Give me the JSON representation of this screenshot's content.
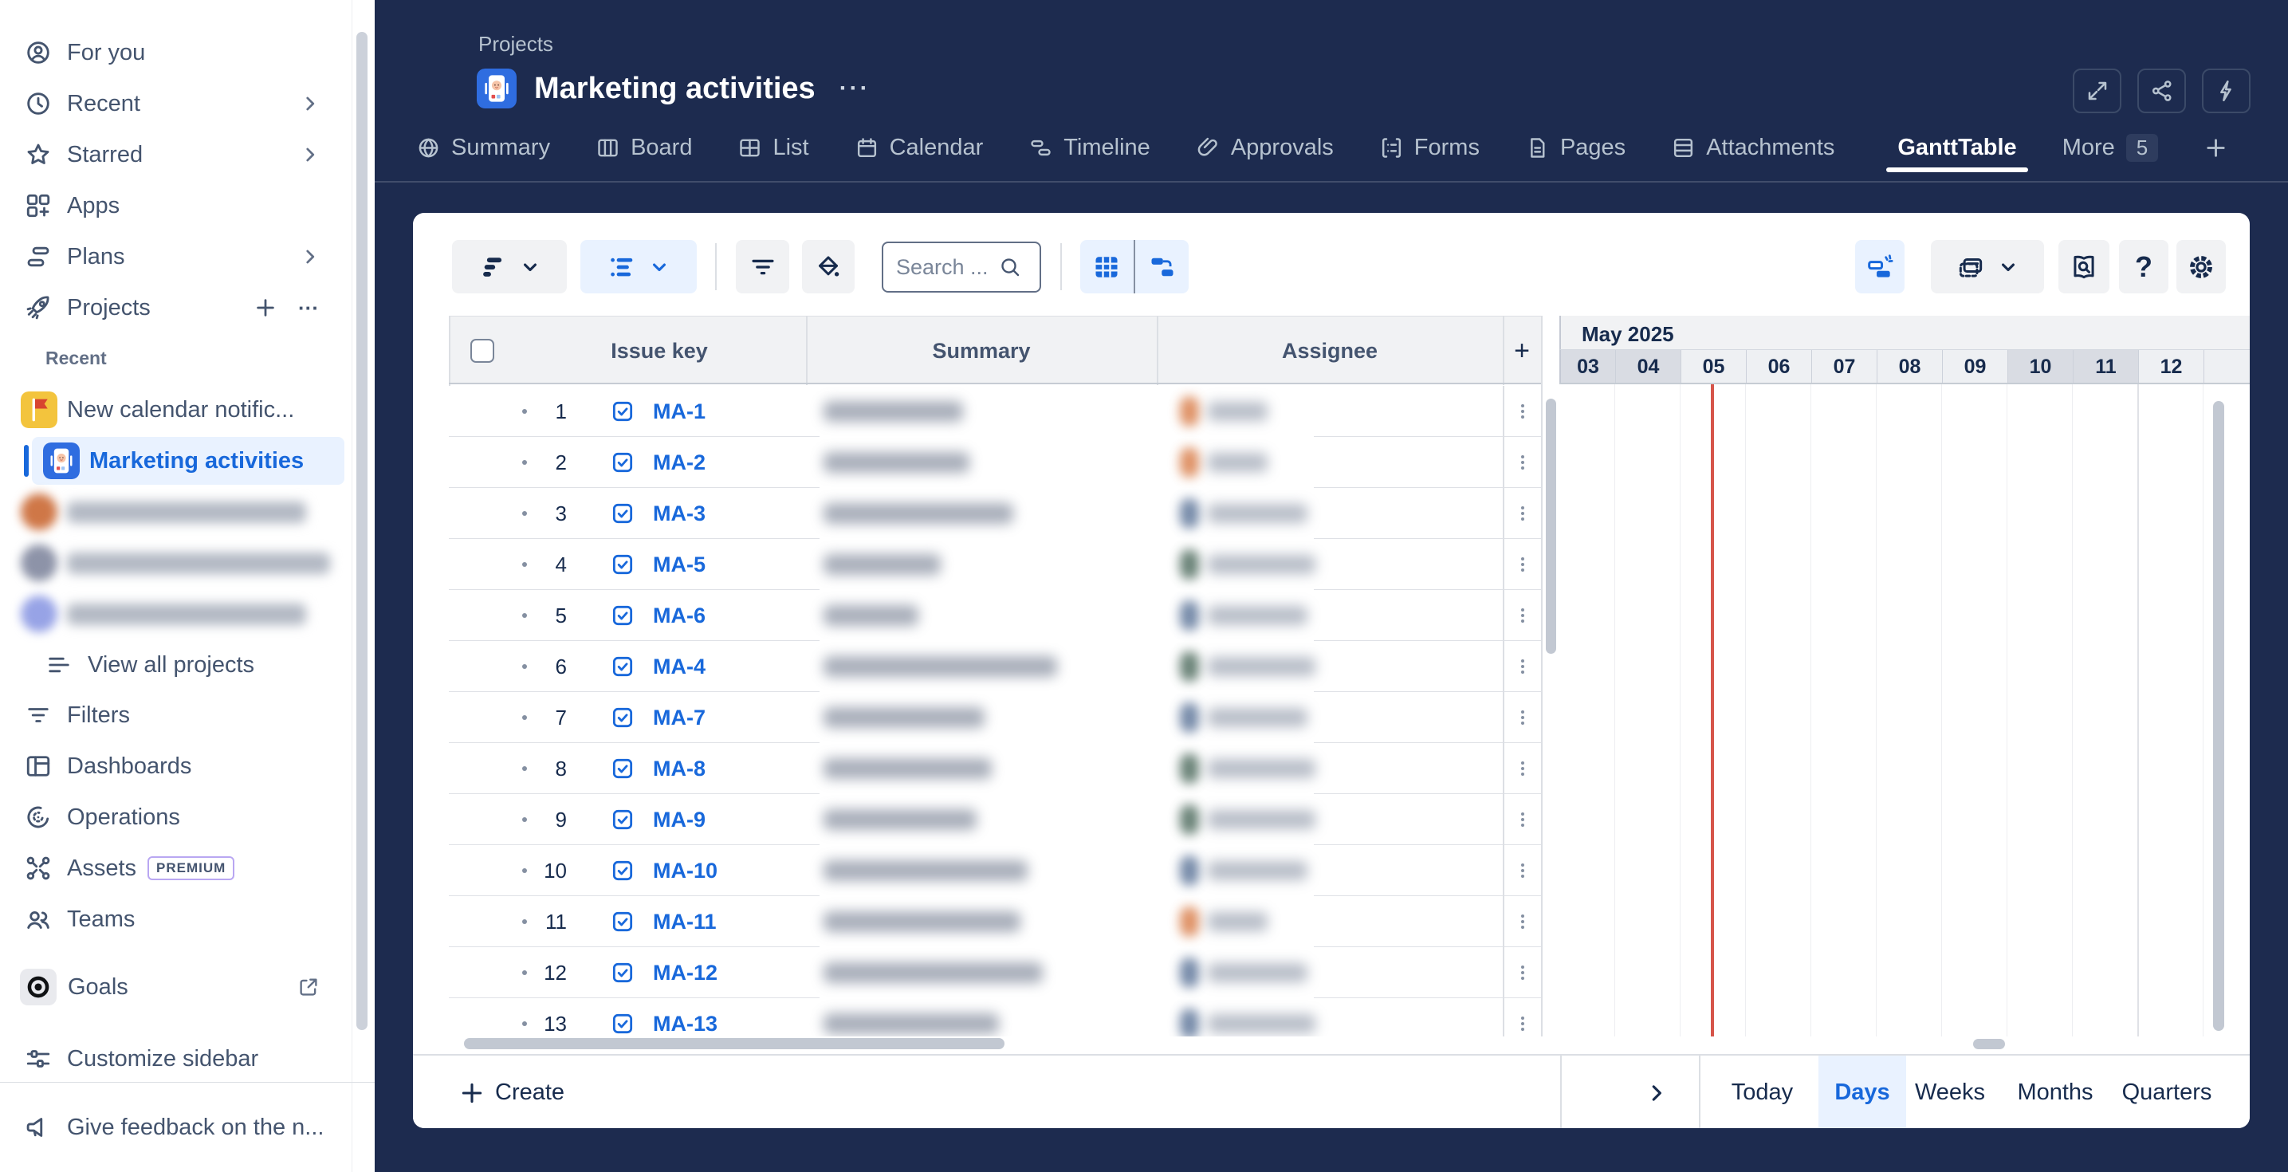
{
  "colors": {
    "navy": "#1d2b4f",
    "accent_blue": "#1868db",
    "light_blue_bg": "#e9f2ff",
    "button_gray": "#f1f2f4",
    "border": "#dcdfe4",
    "text_dark": "#172b4d",
    "text_mid": "#44546f",
    "today_red": "#d6554a",
    "weekend_gray": "#d9dce3",
    "flag_icon_bg": "#f3c43d",
    "project_icon_bg": "#2f6de0"
  },
  "sidebar": {
    "nav": [
      {
        "label": "For you",
        "icon": "person-circle"
      },
      {
        "label": "Recent",
        "icon": "clock",
        "chevron": true
      },
      {
        "label": "Starred",
        "icon": "star",
        "chevron": true
      },
      {
        "label": "Apps",
        "icon": "apps"
      },
      {
        "label": "Plans",
        "icon": "plans",
        "chevron": true
      },
      {
        "label": "Projects",
        "icon": "rocket",
        "plus": true,
        "ellipsis": true
      }
    ],
    "recent_label": "Recent",
    "recent_projects": [
      {
        "label": "New calendar notific...",
        "icon": "flag"
      },
      {
        "label": "Marketing activities",
        "icon": "phone-app",
        "selected": true
      },
      {
        "blurred": true,
        "icon_color": "#cf7747",
        "text_width": 300
      },
      {
        "blurred": true,
        "icon_color": "#8d93a8",
        "text_width": 330
      },
      {
        "blurred": true,
        "icon_color": "#97a3e6",
        "text_width": 300
      }
    ],
    "view_all": {
      "label": "View all projects",
      "icon": "lines"
    },
    "tools": [
      {
        "label": "Filters",
        "icon": "filter"
      },
      {
        "label": "Dashboards",
        "icon": "dashboards"
      },
      {
        "label": "Operations",
        "icon": "operations"
      },
      {
        "label": "Assets",
        "icon": "assets",
        "badge": "PREMIUM"
      },
      {
        "label": "Teams",
        "icon": "teams"
      }
    ],
    "goals": {
      "label": "Goals",
      "icon": "target",
      "external": true
    },
    "customize": {
      "label": "Customize sidebar",
      "icon": "sliders"
    },
    "feedback": {
      "label": "Give feedback on the n...",
      "icon": "megaphone"
    }
  },
  "header": {
    "breadcrumb": "Projects",
    "title": "Marketing activities",
    "tabs": [
      {
        "label": "Summary",
        "icon": "globe"
      },
      {
        "label": "Board",
        "icon": "board"
      },
      {
        "label": "List",
        "icon": "list"
      },
      {
        "label": "Calendar",
        "icon": "calendar"
      },
      {
        "label": "Timeline",
        "icon": "timeline"
      },
      {
        "label": "Approvals",
        "icon": "paperclip"
      },
      {
        "label": "Forms",
        "icon": "forms"
      },
      {
        "label": "Pages",
        "icon": "pages"
      },
      {
        "label": "Attachments",
        "icon": "attachments"
      }
    ],
    "app_tab": {
      "label": "GanttTable",
      "active": true
    },
    "more": {
      "label": "More",
      "count": "5"
    }
  },
  "toolbar": {
    "search_placeholder": "Search ..."
  },
  "table": {
    "columns": [
      "Issue key",
      "Summary",
      "Assignee"
    ],
    "rows": [
      {
        "num": "1",
        "key": "MA-1",
        "avatar_color": "#d97e4a",
        "summary_width": 175,
        "name_width": 75
      },
      {
        "num": "2",
        "key": "MA-2",
        "avatar_color": "#d97e4a",
        "summary_width": 183,
        "name_width": 75
      },
      {
        "num": "3",
        "key": "MA-3",
        "avatar_color": "#5d7599",
        "summary_width": 238,
        "name_width": 125
      },
      {
        "num": "4",
        "key": "MA-5",
        "avatar_color": "#4e6b5e",
        "summary_width": 147,
        "name_width": 135
      },
      {
        "num": "5",
        "key": "MA-6",
        "avatar_color": "#5d7599",
        "summary_width": 119,
        "name_width": 125
      },
      {
        "num": "6",
        "key": "MA-4",
        "avatar_color": "#4e6b5e",
        "summary_width": 293,
        "name_width": 135
      },
      {
        "num": "7",
        "key": "MA-7",
        "avatar_color": "#5d7599",
        "summary_width": 202,
        "name_width": 125
      },
      {
        "num": "8",
        "key": "MA-8",
        "avatar_color": "#4e6b5e",
        "summary_width": 211,
        "name_width": 135
      },
      {
        "num": "9",
        "key": "MA-9",
        "avatar_color": "#4e6b5e",
        "summary_width": 192,
        "name_width": 135
      },
      {
        "num": "10",
        "key": "MA-10",
        "avatar_color": "#5d7599",
        "summary_width": 256,
        "name_width": 125
      },
      {
        "num": "11",
        "key": "MA-11",
        "avatar_color": "#d97e4a",
        "summary_width": 247,
        "name_width": 75
      },
      {
        "num": "12",
        "key": "MA-12",
        "avatar_color": "#5d7599",
        "summary_width": 275,
        "name_width": 125
      },
      {
        "num": "13",
        "key": "MA-13",
        "avatar_color": "#5d7599",
        "summary_width": 220,
        "name_width": 135
      }
    ],
    "add_column_label": "+"
  },
  "gantt": {
    "month": "May 2025",
    "days": [
      "03",
      "04",
      "05",
      "06",
      "07",
      "08",
      "09",
      "10",
      "11",
      "12"
    ],
    "weekend_indices": [
      0,
      1,
      7,
      8
    ],
    "today_day": "05"
  },
  "footer": {
    "create_label": "Create",
    "today_label": "Today",
    "zoom_levels": [
      "Days",
      "Weeks",
      "Months",
      "Quarters"
    ],
    "active_zoom": "Days"
  }
}
